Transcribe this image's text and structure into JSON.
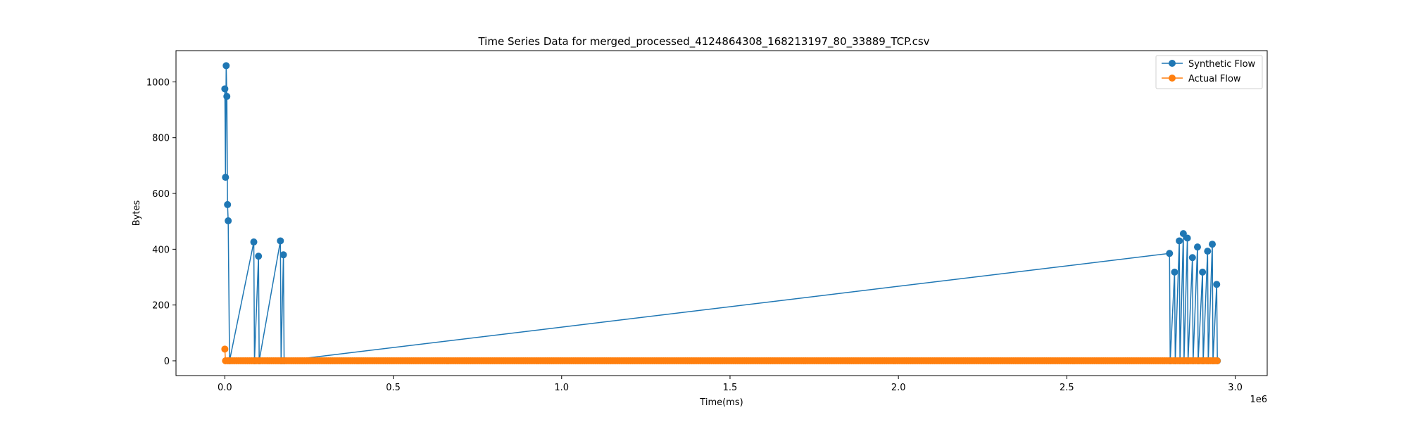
{
  "chart_data": {
    "type": "line",
    "title": "Time Series Data for merged_processed_4124864308_168213197_80_33889_TCP.csv",
    "xlabel": "Time(ms)",
    "ylabel": "Bytes",
    "x_offset_label": "1e6",
    "xlim": [
      -145000,
      3095000
    ],
    "ylim": [
      -53,
      1112
    ],
    "xticks": [
      0,
      0.5,
      1.0,
      1.5,
      2.0,
      2.5,
      3.0
    ],
    "xtick_labels": [
      "0.0",
      "0.5",
      "1.0",
      "1.5",
      "2.0",
      "2.5",
      "3.0"
    ],
    "yticks": [
      0,
      200,
      400,
      600,
      800,
      1000
    ],
    "ytick_labels": [
      "0",
      "200",
      "400",
      "600",
      "800",
      "1000"
    ],
    "legend": {
      "position": "top-right"
    },
    "series": [
      {
        "name": "Synthetic Flow",
        "color": "#1f77b4",
        "x": [
          0,
          2000,
          4000,
          6000,
          8000,
          10000,
          14000,
          86000,
          88000,
          100000,
          102000,
          165000,
          167000,
          174000,
          176000,
          2805000,
          2807000,
          2820000,
          2822000,
          2834000,
          2836000,
          2846000,
          2848000,
          2858000,
          2860000,
          2873000,
          2875000,
          2888000,
          2890000,
          2903000,
          2905000,
          2918000,
          2920000,
          2932000,
          2934000,
          2945000,
          2947000
        ],
        "values": [
          975,
          658,
          1058,
          948,
          560,
          502,
          0,
          426,
          0,
          375,
          0,
          430,
          0,
          380,
          0,
          385,
          0,
          318,
          0,
          430,
          0,
          456,
          0,
          440,
          0,
          370,
          0,
          408,
          0,
          318,
          0,
          393,
          0,
          418,
          0,
          274,
          0
        ]
      },
      {
        "name": "Actual Flow",
        "color": "#ff7f0e",
        "x": [
          0
        ],
        "values": [
          42
        ],
        "baseline_points": {
          "start": 2000,
          "end": 2950000,
          "step": 6500,
          "value": 0
        }
      }
    ]
  }
}
